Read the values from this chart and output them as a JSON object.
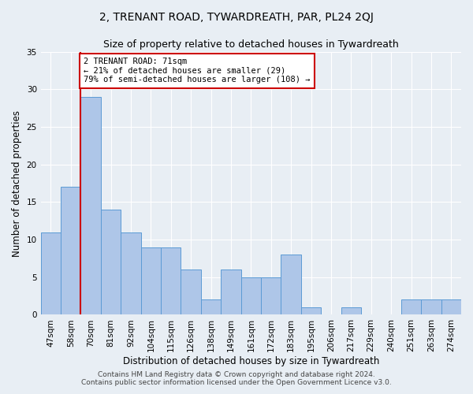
{
  "title": "2, TRENANT ROAD, TYWARDREATH, PAR, PL24 2QJ",
  "subtitle": "Size of property relative to detached houses in Tywardreath",
  "xlabel": "Distribution of detached houses by size in Tywardreath",
  "ylabel": "Number of detached properties",
  "categories": [
    "47sqm",
    "58sqm",
    "70sqm",
    "81sqm",
    "92sqm",
    "104sqm",
    "115sqm",
    "126sqm",
    "138sqm",
    "149sqm",
    "161sqm",
    "172sqm",
    "183sqm",
    "195sqm",
    "206sqm",
    "217sqm",
    "229sqm",
    "240sqm",
    "251sqm",
    "263sqm",
    "274sqm"
  ],
  "values": [
    11,
    17,
    29,
    14,
    11,
    9,
    9,
    6,
    2,
    6,
    5,
    5,
    8,
    1,
    0,
    1,
    0,
    0,
    2,
    2,
    2
  ],
  "bar_color": "#aec6e8",
  "bar_edge_color": "#5b9bd5",
  "highlight_bar_index": 2,
  "highlight_line_color": "#cc0000",
  "annotation_text": "2 TRENANT ROAD: 71sqm\n← 21% of detached houses are smaller (29)\n79% of semi-detached houses are larger (108) →",
  "annotation_box_color": "white",
  "annotation_box_edge_color": "#cc0000",
  "ylim": [
    0,
    35
  ],
  "yticks": [
    0,
    5,
    10,
    15,
    20,
    25,
    30,
    35
  ],
  "background_color": "#e8eef4",
  "plot_background_color": "#e8eef4",
  "footer_line1": "Contains HM Land Registry data © Crown copyright and database right 2024.",
  "footer_line2": "Contains public sector information licensed under the Open Government Licence v3.0.",
  "title_fontsize": 10,
  "subtitle_fontsize": 9,
  "xlabel_fontsize": 8.5,
  "ylabel_fontsize": 8.5,
  "tick_fontsize": 7.5,
  "footer_fontsize": 6.5,
  "annotation_fontsize": 7.5
}
